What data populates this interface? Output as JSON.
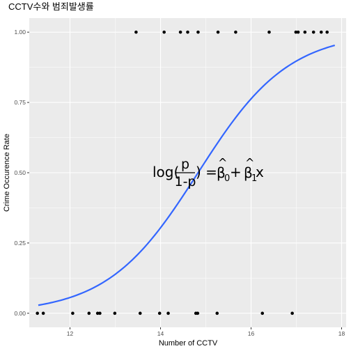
{
  "chart_data": {
    "type": "scatter",
    "title": "CCTV수와 범죄발생률",
    "xlabel": "Number of CCTV",
    "ylabel": "Crime Occurence Rate",
    "xlim": [
      11.1,
      18.1
    ],
    "ylim": [
      -0.05,
      1.05
    ],
    "x_ticks": [
      12,
      14,
      16,
      18
    ],
    "x_tick_labels": [
      "12",
      "14",
      "16",
      "18"
    ],
    "y_ticks": [
      0,
      0.25,
      0.5,
      0.75,
      1
    ],
    "y_tick_labels": [
      "0.00",
      "0.25",
      "0.50",
      "0.75",
      "1.00"
    ],
    "grid": true,
    "points": [
      {
        "x": 11.28,
        "y": 0
      },
      {
        "x": 11.41,
        "y": 0
      },
      {
        "x": 12.06,
        "y": 0
      },
      {
        "x": 12.42,
        "y": 0
      },
      {
        "x": 12.61,
        "y": 0
      },
      {
        "x": 12.66,
        "y": 0
      },
      {
        "x": 12.99,
        "y": 0
      },
      {
        "x": 13.55,
        "y": 0
      },
      {
        "x": 13.98,
        "y": 0
      },
      {
        "x": 14.17,
        "y": 0
      },
      {
        "x": 14.78,
        "y": 0
      },
      {
        "x": 14.82,
        "y": 0
      },
      {
        "x": 15.25,
        "y": 0
      },
      {
        "x": 16.25,
        "y": 0
      },
      {
        "x": 16.91,
        "y": 0
      },
      {
        "x": 13.46,
        "y": 1
      },
      {
        "x": 14.08,
        "y": 1
      },
      {
        "x": 14.44,
        "y": 1
      },
      {
        "x": 14.6,
        "y": 1
      },
      {
        "x": 14.83,
        "y": 1
      },
      {
        "x": 15.27,
        "y": 1
      },
      {
        "x": 15.66,
        "y": 1
      },
      {
        "x": 16.4,
        "y": 1
      },
      {
        "x": 16.99,
        "y": 1
      },
      {
        "x": 17.04,
        "y": 1
      },
      {
        "x": 17.19,
        "y": 1
      },
      {
        "x": 17.38,
        "y": 1
      },
      {
        "x": 17.55,
        "y": 1
      },
      {
        "x": 17.68,
        "y": 1
      },
      {
        "x": 18.21,
        "y": 1
      }
    ],
    "fit": {
      "type": "logistic",
      "intercept": -14.8,
      "slope": 0.998,
      "x_range": [
        11.3,
        17.85
      ],
      "color": "#3366ff"
    },
    "point_color": "#000000",
    "panel_color": "#ebebeb",
    "grid_color": "#ffffff",
    "annotation": {
      "log": "log(",
      "numerator": "p",
      "denominator": "1-p",
      "equals": ") = ",
      "beta0": "β",
      "sub0": "0",
      "plus": " + ",
      "beta1": "β",
      "sub1": "1",
      "hat": "^",
      "x": "x"
    }
  }
}
